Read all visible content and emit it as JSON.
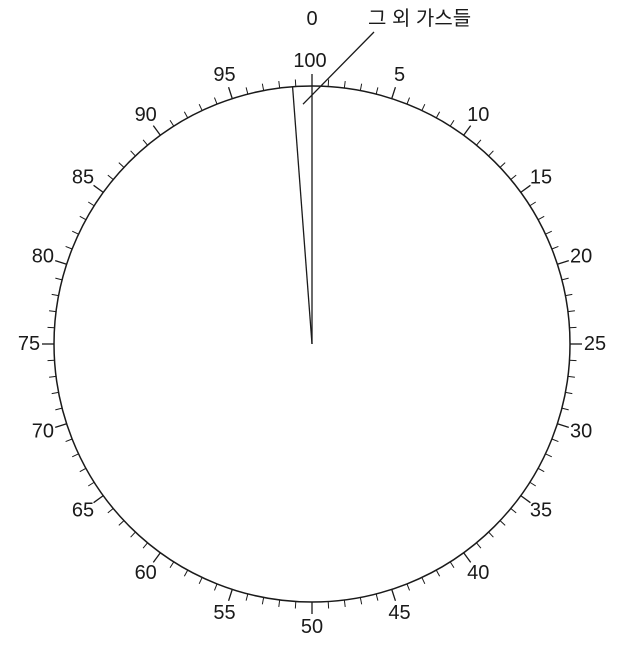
{
  "chart_data": {
    "type": "pie",
    "scale": {
      "min": 0,
      "max": 100,
      "major_step": 5,
      "minor_step": 1
    },
    "tick_labels": [
      "0",
      "5",
      "10",
      "15",
      "20",
      "25",
      "30",
      "35",
      "40",
      "45",
      "50",
      "55",
      "60",
      "65",
      "70",
      "75",
      "80",
      "85",
      "90",
      "95",
      "100"
    ],
    "slices": [
      {
        "label": "그 외 가스들",
        "start": 98.8,
        "end": 100
      }
    ],
    "annotation": {
      "text": "그 외 가스들"
    },
    "colors": {
      "stroke": "#1a1a1a",
      "background": "#ffffff"
    }
  }
}
